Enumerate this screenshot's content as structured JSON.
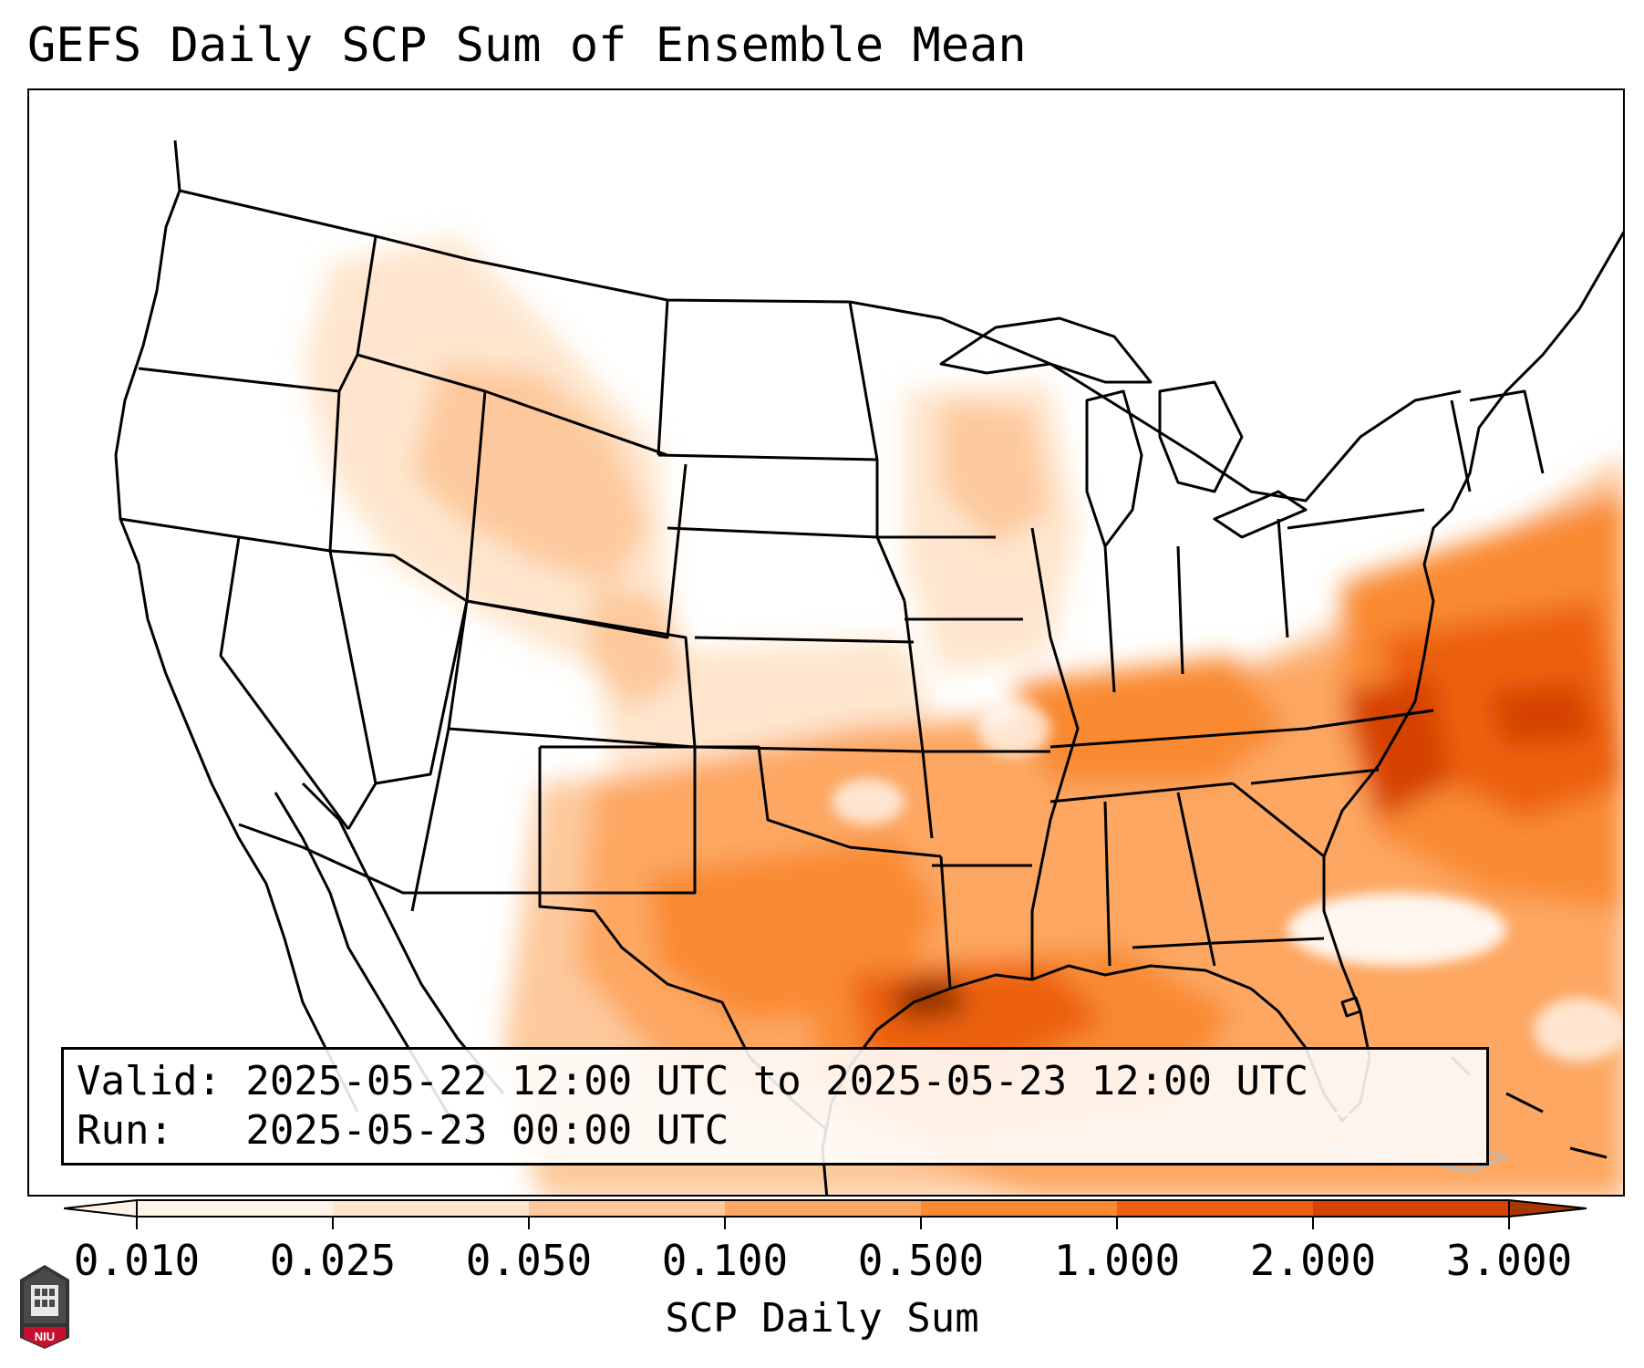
{
  "title": "GEFS Daily SCP Sum of Ensemble Mean",
  "info": {
    "valid_line": "Valid: 2025-05-22 12:00 UTC to 2025-05-23 12:00 UTC",
    "run_line": "Run:   2025-05-23 00:00 UTC"
  },
  "colorbar": {
    "label": "SCP Daily Sum",
    "ticks": [
      "0.010",
      "0.025",
      "0.050",
      "0.100",
      "0.500",
      "1.000",
      "2.000",
      "3.000"
    ],
    "colors": [
      "#fff3e8",
      "#fee6ce",
      "#fdc99c",
      "#fda762",
      "#f98a33",
      "#ec6110",
      "#d54303",
      "#a63603"
    ],
    "extend": "both"
  },
  "map": {
    "projection": "lambert-conic-conus",
    "shading_colors": {
      "very_light": "#fff3e8",
      "light": "#fee6ce",
      "pale_orange": "#fdc99c",
      "orange": "#fda762",
      "mid_orange": "#f98a33",
      "dark_orange": "#ec6110",
      "deep_orange": "#d54303",
      "brown": "#8c2d04"
    }
  },
  "logo": {
    "text": "NIU",
    "color": "#c8102e"
  }
}
